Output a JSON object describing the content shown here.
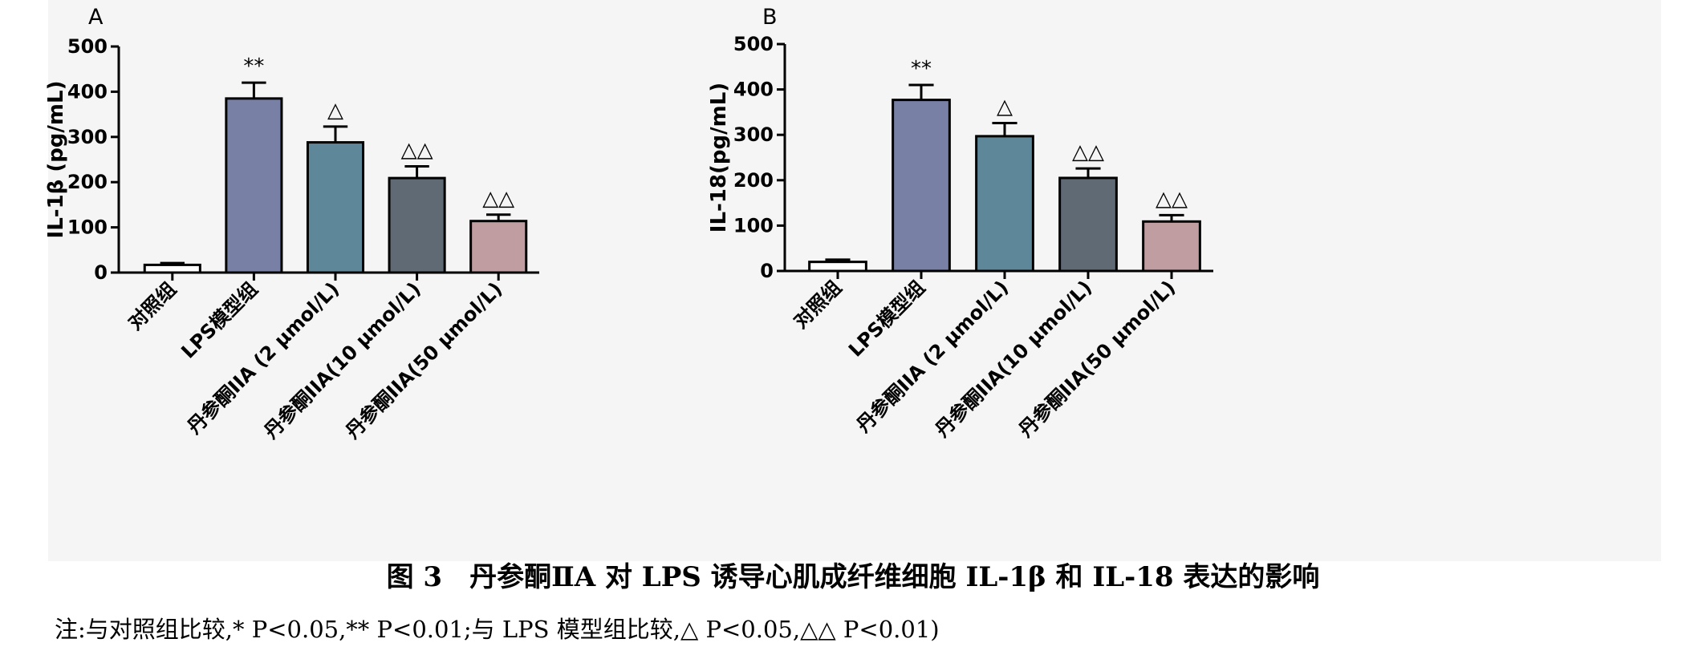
{
  "caption": "图 3　丹参酮ⅡA 对 LPS 诱导心肌成纤维细胞 IL-1β 和 IL-18 表达的影响",
  "note": "注:与对照组比较,* P<0.05,** P<0.01;与 LPS 模型组比较,△ P<0.05,△△ P<0.01)",
  "colors": {
    "bars": [
      "#ffffff",
      "#7880a6",
      "#5e8899",
      "#5f6a74",
      "#c09da0"
    ],
    "axis": "#000000",
    "panel_background": "#f5f5f5"
  },
  "chart_data": [
    {
      "type": "bar",
      "panel": "A",
      "ylabel": "IL-1β (pg/mL)",
      "ylim": [
        0,
        500
      ],
      "yticks": [
        "0",
        "100",
        "200",
        "300",
        "400",
        "500"
      ],
      "categories": [
        "对照组",
        "LPS模型组",
        "丹参酮IIA (2 μmol/L)",
        "丹参酮IIA(10 μmol/L)",
        "丹参酮IIA(50 μmol/L)"
      ],
      "values": [
        17,
        385,
        288,
        209,
        114
      ],
      "errors": [
        4,
        35,
        35,
        26,
        14
      ],
      "significance": [
        "",
        "**",
        "△",
        "△△",
        "△△"
      ]
    },
    {
      "type": "bar",
      "panel": "B",
      "ylabel": "IL-18(pg/mL)",
      "ylim": [
        0,
        500
      ],
      "yticks": [
        "0",
        "100",
        "200",
        "300",
        "400",
        "500"
      ],
      "categories": [
        "对照组",
        "LPS模型组",
        "丹参酮IIA (2 μmol/L)",
        "丹参酮IIA(10 μmol/L)",
        "丹参酮IIA(50 μmol/L)"
      ],
      "values": [
        20,
        377,
        297,
        205,
        109
      ],
      "errors": [
        5,
        33,
        29,
        21,
        14
      ],
      "significance": [
        "",
        "**",
        "△",
        "△△",
        "△△"
      ]
    }
  ]
}
